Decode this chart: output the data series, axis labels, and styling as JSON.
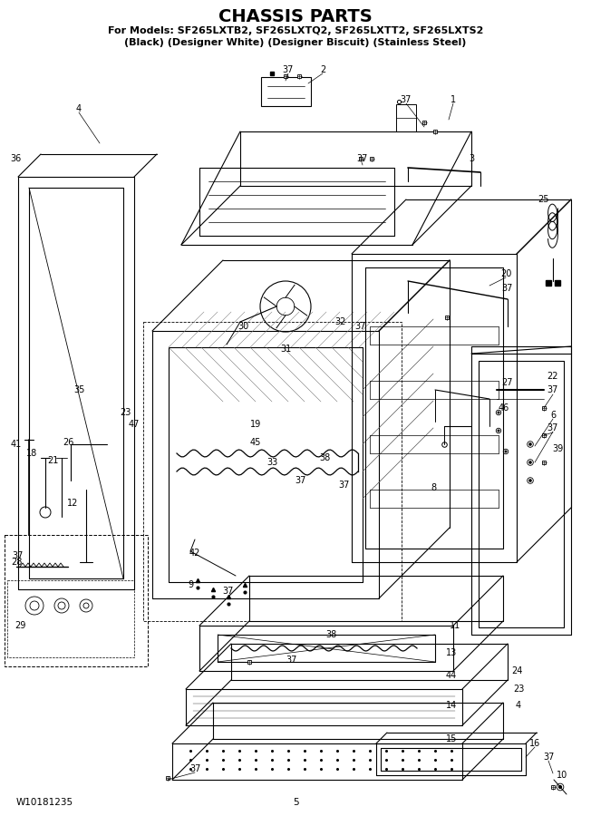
{
  "title": "CHASSIS PARTS",
  "subtitle1": "For Models: SF265LXTB2, SF265LXTQ2, SF265LXTT2, SF265LXTS2",
  "subtitle2": "(Black) (Designer White) (Designer Biscuit) (Stainless Steel)",
  "footer_left": "W10181235",
  "footer_center": "5",
  "background_color": "#ffffff",
  "title_fontsize": 15,
  "subtitle_fontsize": 8.5,
  "footer_fontsize": 7.5
}
